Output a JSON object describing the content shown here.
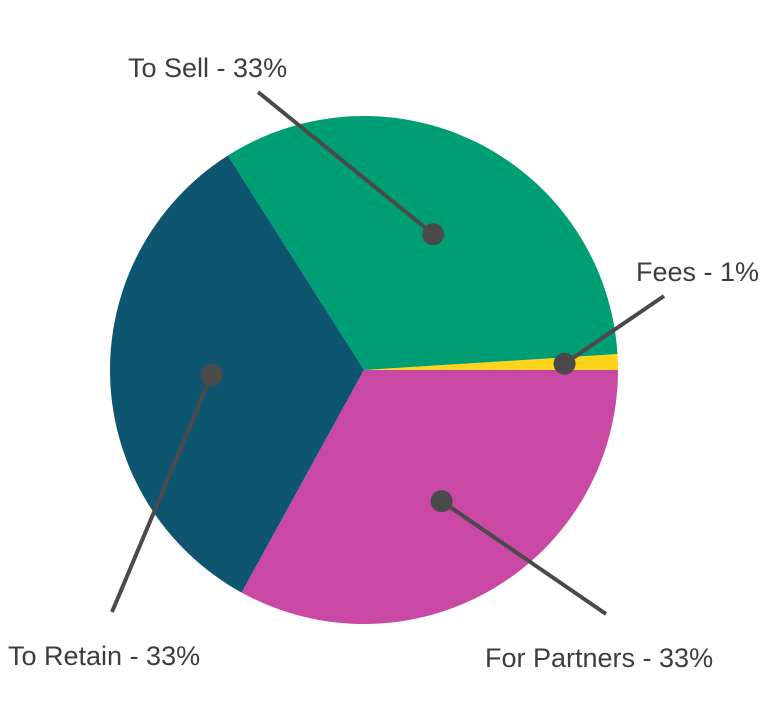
{
  "chart_data": {
    "type": "pie",
    "slices": [
      {
        "label": "Fees - 1%",
        "name": "Fees",
        "value": 1,
        "color": "#FDD41A"
      },
      {
        "label": "To Sell - 33%",
        "name": "To Sell",
        "value": 33,
        "color": "#009E74"
      },
      {
        "label": "To Retain - 33%",
        "name": "To Retain",
        "value": 33,
        "color": "#0E5670"
      },
      {
        "label": "For Partners - 33%",
        "name": "For Partners",
        "value": 33,
        "color": "#C848A4"
      }
    ],
    "leader_color": "#4A4A4A",
    "legend": "none"
  }
}
